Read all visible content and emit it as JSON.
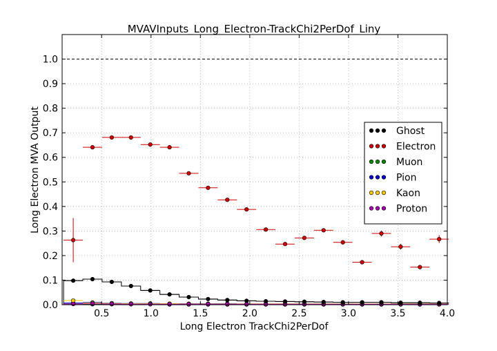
{
  "chart_data": {
    "type": "scatter",
    "title": "MVAVInputs_Long_Electron-TrackChi2PerDof_Liny",
    "xlabel": "Long Electron TrackChi2PerDof",
    "ylabel": "Long Electron MVA Output",
    "xlim": [
      0.1,
      4.0
    ],
    "ylim": [
      0.0,
      1.1
    ],
    "x_ticks": [
      "0.5",
      "1.0",
      "1.5",
      "2.0",
      "2.5",
      "3.0",
      "3.5",
      "4.0"
    ],
    "y_ticks": [
      "0.0",
      "0.1",
      "0.2",
      "0.3",
      "0.4",
      "0.5",
      "0.6",
      "0.7",
      "0.8",
      "0.9",
      "1.0"
    ],
    "grid": true,
    "reference_line": 1.0,
    "legend_position": "center-right",
    "x": [
      0.2125,
      0.4075,
      0.6025,
      0.7975,
      0.9925,
      1.1875,
      1.3825,
      1.5775,
      1.7725,
      1.9675,
      2.1625,
      2.3575,
      2.5525,
      2.7475,
      2.9425,
      3.1375,
      3.3325,
      3.5275,
      3.7225,
      3.9175
    ],
    "series": [
      {
        "name": "Ghost",
        "color": "#000000",
        "values": [
          0.098,
          0.104,
          0.093,
          0.076,
          0.058,
          0.042,
          0.031,
          0.023,
          0.019,
          0.016,
          0.014,
          0.013,
          0.012,
          0.011,
          0.01,
          0.01,
          0.01,
          0.008,
          0.008,
          0.007
        ],
        "errors": [
          0.004,
          0.003,
          0.002,
          0.002,
          0.002,
          0.002,
          0.001,
          0.001,
          0.001,
          0.001,
          0.001,
          0.001,
          0.001,
          0.001,
          0.001,
          0.001,
          0.001,
          0.001,
          0.001,
          0.001
        ]
      },
      {
        "name": "Electron",
        "color": "#cc0000",
        "values": [
          0.263,
          0.641,
          0.681,
          0.681,
          0.652,
          0.641,
          0.535,
          0.476,
          0.427,
          0.388,
          0.306,
          0.247,
          0.272,
          0.303,
          0.254,
          0.173,
          0.29,
          0.236,
          0.153,
          0.267
        ],
        "errors": [
          0.09,
          0.004,
          0.004,
          0.004,
          0.004,
          0.004,
          0.004,
          0.005,
          0.005,
          0.006,
          0.006,
          0.007,
          0.007,
          0.007,
          0.009,
          0.006,
          0.012,
          0.012,
          0.006,
          0.016
        ]
      },
      {
        "name": "Muon",
        "color": "#008800",
        "values": [
          0.003,
          0.002,
          0.002,
          0.002,
          0.002,
          0.001,
          0.001,
          0.001,
          0.001,
          0.001,
          0.001,
          0.001,
          0.001,
          0.001,
          0.001,
          0.001,
          0.001,
          0.001,
          0.001,
          0.001
        ],
        "errors": [
          0.001,
          0.001,
          0.001,
          0.001,
          0.001,
          0.001,
          0.001,
          0.001,
          0.001,
          0.001,
          0.001,
          0.001,
          0.001,
          0.001,
          0.001,
          0.001,
          0.001,
          0.001,
          0.001,
          0.001
        ]
      },
      {
        "name": "Pion",
        "color": "#0000cc",
        "values": [
          0.007,
          0.009,
          0.006,
          0.005,
          0.005,
          0.004,
          0.004,
          0.004,
          0.004,
          0.003,
          0.003,
          0.003,
          0.003,
          0.003,
          0.003,
          0.003,
          0.003,
          0.003,
          0.003,
          0.003
        ],
        "errors": [
          0.001,
          0.001,
          0.001,
          0.001,
          0.001,
          0.001,
          0.001,
          0.001,
          0.001,
          0.001,
          0.001,
          0.001,
          0.001,
          0.001,
          0.001,
          0.001,
          0.001,
          0.001,
          0.001,
          0.001
        ]
      },
      {
        "name": "Kaon",
        "color": "#ffcc00",
        "values": [
          0.017,
          0.007,
          0.005,
          0.004,
          0.004,
          0.004,
          0.003,
          0.003,
          0.003,
          0.003,
          0.003,
          0.003,
          0.003,
          0.003,
          0.003,
          0.003,
          0.003,
          0.003,
          0.003,
          0.003
        ],
        "errors": [
          0.003,
          0.001,
          0.001,
          0.001,
          0.001,
          0.001,
          0.001,
          0.001,
          0.001,
          0.001,
          0.001,
          0.001,
          0.001,
          0.001,
          0.001,
          0.001,
          0.001,
          0.001,
          0.001,
          0.001
        ]
      },
      {
        "name": "Proton",
        "color": "#aa00aa",
        "values": [
          0.003,
          0.004,
          0.003,
          0.002,
          0.002,
          0.002,
          0.002,
          0.002,
          0.002,
          0.002,
          0.002,
          0.002,
          0.002,
          0.002,
          0.002,
          0.002,
          0.002,
          0.002,
          0.002,
          0.002
        ],
        "errors": [
          0.001,
          0.001,
          0.001,
          0.001,
          0.001,
          0.001,
          0.001,
          0.001,
          0.001,
          0.001,
          0.001,
          0.001,
          0.001,
          0.001,
          0.001,
          0.001,
          0.001,
          0.001,
          0.001,
          0.001
        ]
      }
    ]
  }
}
